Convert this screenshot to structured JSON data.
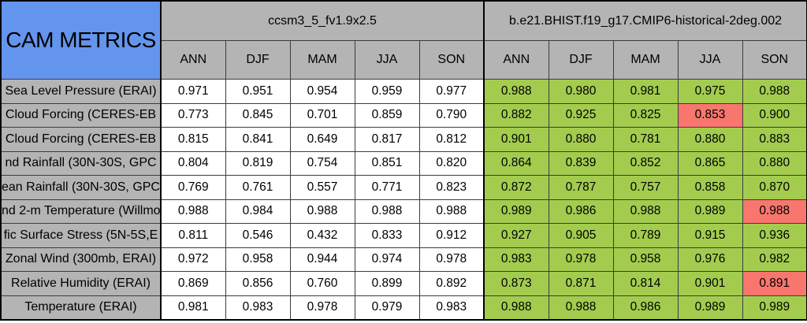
{
  "chart_data": {
    "type": "table",
    "title": "CAM METRICS",
    "column_groups": [
      "ccsm3_5_fv1.9x2.5",
      "b.e21.BHIST.f19_g17.CMIP6-historical-2deg.002"
    ],
    "season_columns": [
      "ANN",
      "DJF",
      "MAM",
      "JJA",
      "SON"
    ],
    "rows": [
      {
        "label": "Sea Level Pressure (ERAI)",
        "baseline": [
          "0.971",
          "0.951",
          "0.954",
          "0.959",
          "0.977"
        ],
        "test": [
          "0.988",
          "0.980",
          "0.981",
          "0.975",
          "0.988"
        ]
      },
      {
        "label": "Cloud Forcing (CERES-EB",
        "baseline": [
          "0.773",
          "0.845",
          "0.701",
          "0.859",
          "0.790"
        ],
        "test": [
          "0.882",
          "0.925",
          "0.825",
          "0.853",
          "0.900"
        ]
      },
      {
        "label": "Cloud Forcing (CERES-EB",
        "baseline": [
          "0.815",
          "0.841",
          "0.649",
          "0.817",
          "0.812"
        ],
        "test": [
          "0.901",
          "0.880",
          "0.781",
          "0.880",
          "0.883"
        ]
      },
      {
        "label": "nd Rainfall (30N-30S, GPC",
        "baseline": [
          "0.804",
          "0.819",
          "0.754",
          "0.851",
          "0.820"
        ],
        "test": [
          "0.864",
          "0.839",
          "0.852",
          "0.865",
          "0.880"
        ]
      },
      {
        "label": "ean Rainfall (30N-30S, GPC",
        "baseline": [
          "0.769",
          "0.761",
          "0.557",
          "0.771",
          "0.823"
        ],
        "test": [
          "0.872",
          "0.787",
          "0.757",
          "0.858",
          "0.870"
        ]
      },
      {
        "label": "nd 2-m Temperature (Willmo",
        "baseline": [
          "0.988",
          "0.984",
          "0.988",
          "0.988",
          "0.988"
        ],
        "test": [
          "0.989",
          "0.986",
          "0.988",
          "0.989",
          "0.988"
        ]
      },
      {
        "label": "fic Surface Stress (5N-5S,E",
        "baseline": [
          "0.811",
          "0.546",
          "0.432",
          "0.833",
          "0.912"
        ],
        "test": [
          "0.927",
          "0.905",
          "0.789",
          "0.915",
          "0.936"
        ]
      },
      {
        "label": "Zonal Wind (300mb, ERAI)",
        "baseline": [
          "0.972",
          "0.958",
          "0.944",
          "0.974",
          "0.978"
        ],
        "test": [
          "0.983",
          "0.978",
          "0.958",
          "0.976",
          "0.982"
        ]
      },
      {
        "label": "Relative Humidity (ERAI)",
        "baseline": [
          "0.869",
          "0.856",
          "0.760",
          "0.899",
          "0.892"
        ],
        "test": [
          "0.873",
          "0.871",
          "0.814",
          "0.901",
          "0.891"
        ]
      },
      {
        "label": "Temperature (ERAI)",
        "baseline": [
          "0.981",
          "0.983",
          "0.978",
          "0.979",
          "0.983"
        ],
        "test": [
          "0.988",
          "0.988",
          "0.986",
          "0.989",
          "0.989"
        ]
      }
    ],
    "red_flag_cells": [
      {
        "row": 1,
        "season": "JJA"
      },
      {
        "row": 5,
        "season": "SON"
      },
      {
        "row": 8,
        "season": "SON"
      }
    ],
    "colors": {
      "title_bg": "#6495ED",
      "header_bg": "#B4B4B4",
      "baseline_cell_bg": "#FFFFFF",
      "test_good_bg": "#A3CC4F",
      "test_flag_bg": "#F8766D",
      "border": "#000000",
      "text": "#000000"
    },
    "layout": {
      "grid": true,
      "legend": "none"
    }
  }
}
